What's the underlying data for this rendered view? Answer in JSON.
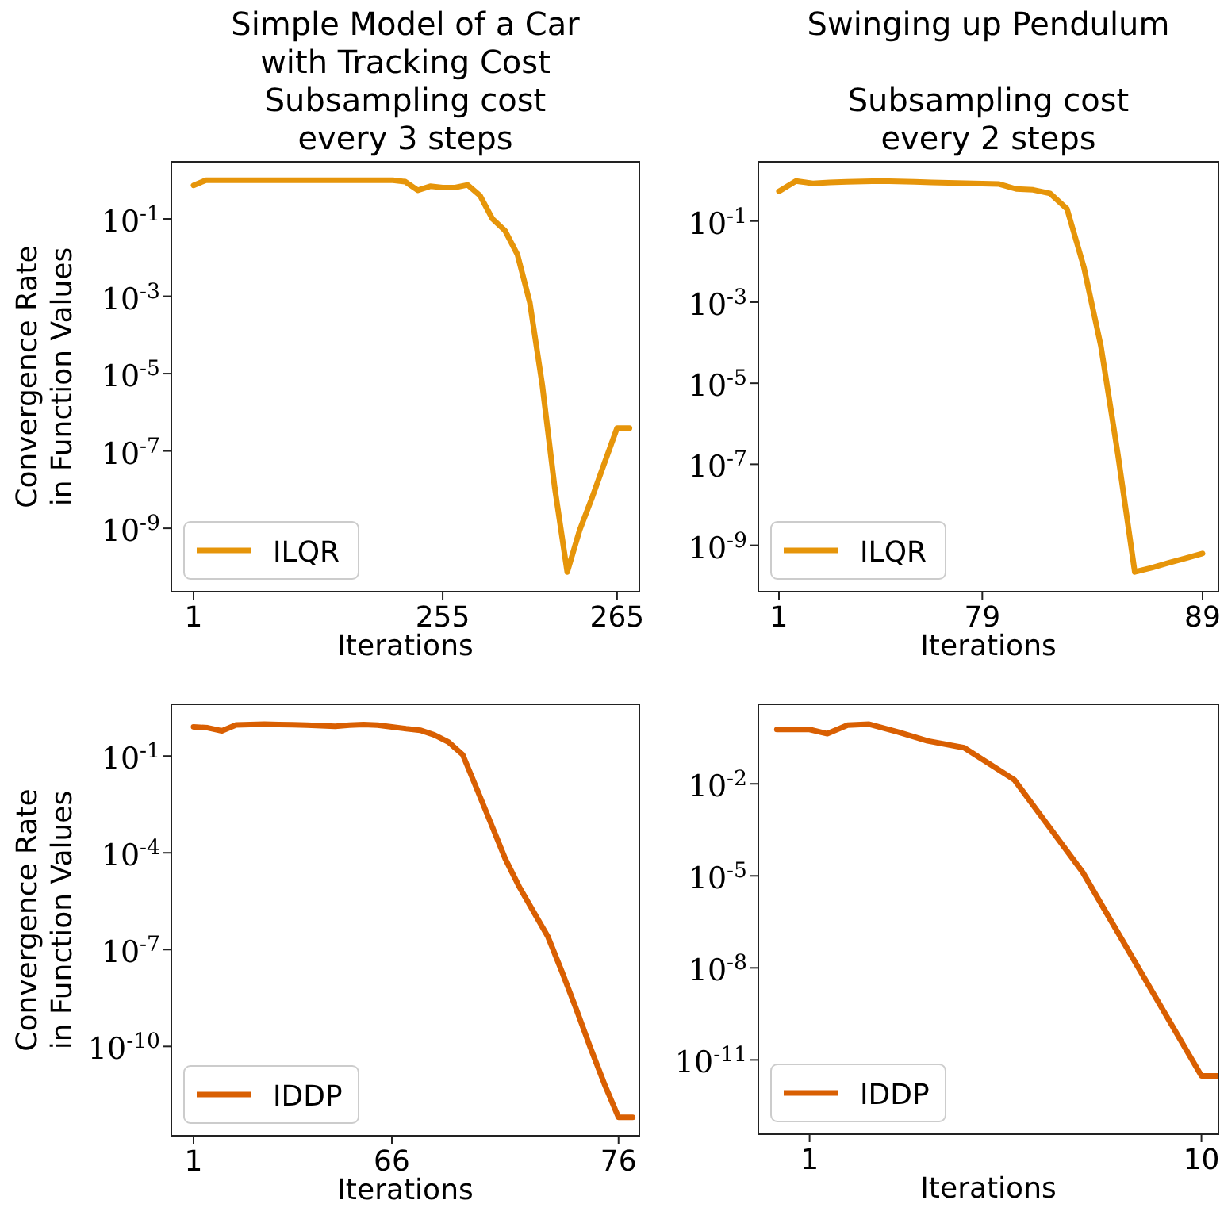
{
  "chart_data": [
    {
      "type": "line",
      "title": "Simple Model of a Car\nwith Tracking Cost",
      "subtitle": "Subsampling cost\nevery 3 steps",
      "xlabel": "Iterations",
      "ylabel": "Convergence Rate\nin Function Values",
      "log": "y",
      "legend": "bottom left",
      "categories": [
        "1",
        null,
        null,
        null,
        null,
        null,
        null,
        null,
        null,
        null,
        null,
        null,
        null,
        null,
        null,
        null,
        null,
        null,
        null,
        null,
        "255",
        null,
        null,
        null,
        null,
        null,
        null,
        null,
        null,
        null,
        null,
        null,
        null,
        null,
        "265",
        null
      ],
      "series": [
        {
          "name": "ILQR",
          "color": "#e6950a",
          "values": [
            0.74,
            1,
            1,
            1,
            1,
            1,
            1,
            1,
            1,
            1,
            1,
            1,
            1,
            1,
            1,
            1,
            1,
            0.92,
            0.55,
            0.7,
            0.65,
            0.65,
            0.76,
            0.4,
            0.1,
            0.05,
            0.012,
            0.00068,
            5e-06,
            1.1e-08,
            7.4e-11,
            9e-10,
            6.3e-09,
            5e-08,
            3.9e-07,
            3.9e-07
          ]
        }
      ],
      "ylim": [
        2.3e-11,
        3
      ],
      "yticks": [
        {
          "value": 0.1,
          "label": "10$^{-1}$"
        },
        {
          "value": 0.001,
          "label": "10$^{-3}$"
        },
        {
          "value": 1e-05,
          "label": "10$^{-5}$"
        },
        {
          "value": 1e-07,
          "label": "10$^{-7}$"
        },
        {
          "value": 1e-09,
          "label": "10$^{-9}$"
        }
      ]
    },
    {
      "type": "line",
      "title": "Swinging up Pendulum",
      "subtitle": "Subsampling cost\nevery 2 steps",
      "xlabel": "Iterations",
      "log": "y",
      "legend": "bottom left",
      "categories": [
        "1",
        null,
        null,
        null,
        null,
        null,
        null,
        null,
        null,
        null,
        null,
        null,
        "79",
        null,
        null,
        null,
        null,
        null,
        null,
        null,
        null,
        null,
        null,
        null,
        null,
        "89"
      ],
      "series": [
        {
          "name": "ILQR",
          "color": "#e6950a",
          "values": [
            0.54,
            0.97,
            0.85,
            0.9,
            0.93,
            0.95,
            0.97,
            0.95,
            0.93,
            0.9,
            0.88,
            0.86,
            0.84,
            0.82,
            0.62,
            0.59,
            0.48,
            0.2,
            0.0072,
            8.3e-05,
            1.8e-07,
            2.2e-10,
            2.8e-10,
            3.7e-10,
            4.8e-10,
            6.3e-10
          ]
        }
      ],
      "ylim": [
        7.2e-11,
        2.9
      ],
      "yticks": [
        {
          "value": 0.1,
          "label": "10$^{-1}$"
        },
        {
          "value": 0.001,
          "label": "10$^{-3}$"
        },
        {
          "value": 1e-05,
          "label": "10$^{-5}$"
        },
        {
          "value": 1e-07,
          "label": "10$^{-7}$"
        },
        {
          "value": 1e-09,
          "label": "10$^{-9}$"
        }
      ]
    },
    {
      "type": "line",
      "xlabel": "Iterations",
      "ylabel": "Convergence Rate\nin Function Values",
      "log": "y",
      "legend": "bottom left",
      "categories": [
        "1",
        null,
        null,
        null,
        null,
        null,
        null,
        null,
        null,
        null,
        null,
        null,
        null,
        null,
        "66",
        null,
        null,
        null,
        null,
        null,
        null,
        null,
        null,
        null,
        null,
        null,
        null,
        null,
        null,
        null,
        "76",
        null
      ],
      "series": [
        {
          "name": "IDDP",
          "color": "#d95f02",
          "values": [
            0.8,
            0.75,
            0.6,
            0.92,
            0.94,
            0.97,
            0.95,
            0.93,
            0.9,
            0.87,
            0.83,
            0.9,
            0.95,
            0.91,
            0.8,
            0.7,
            0.63,
            0.45,
            0.27,
            0.11,
            0.0095,
            0.0008,
            6.6e-05,
            8.7e-06,
            1.5e-06,
            2.6e-07,
            2.1e-08,
            1.5e-09,
            9.5e-11,
            6.9e-12,
            6.3e-13,
            6.3e-13
          ]
        }
      ],
      "ylim": [
        1.7e-13,
        4
      ],
      "yticks": [
        {
          "value": 0.1,
          "label": "10$^{-1}$"
        },
        {
          "value": 0.0001,
          "label": "10$^{-4}$"
        },
        {
          "value": 1e-07,
          "label": "10$^{-7}$"
        },
        {
          "value": 1e-10,
          "label": "10$^{-10}$"
        }
      ]
    },
    {
      "type": "line",
      "xlabel": "Iterations",
      "log": "xy",
      "legend": "bottom left",
      "series": [
        {
          "name": "IDDP",
          "color": "#d95f02",
          "x": [
            0.825,
            1,
            1.11,
            1.25,
            1.42,
            1.68,
            2,
            2.48,
            3.33,
            4.98,
            10,
            11
          ],
          "values": [
            0.59,
            0.59,
            0.43,
            0.82,
            0.88,
            0.49,
            0.25,
            0.15,
            0.0135,
            1.3e-05,
            3e-12,
            3e-12
          ]
        }
      ],
      "xlim": [
        0.74,
        11.05
      ],
      "xticks": [
        1,
        10
      ],
      "ylim": [
        3.8e-14,
        3.9
      ],
      "yticks": [
        {
          "value": 0.01,
          "label": "10$^{-2}$"
        },
        {
          "value": 1e-05,
          "label": "10$^{-5}$"
        },
        {
          "value": 1e-08,
          "label": "10$^{-8}$"
        },
        {
          "value": 1e-11,
          "label": "10$^{-11}$"
        }
      ]
    }
  ]
}
